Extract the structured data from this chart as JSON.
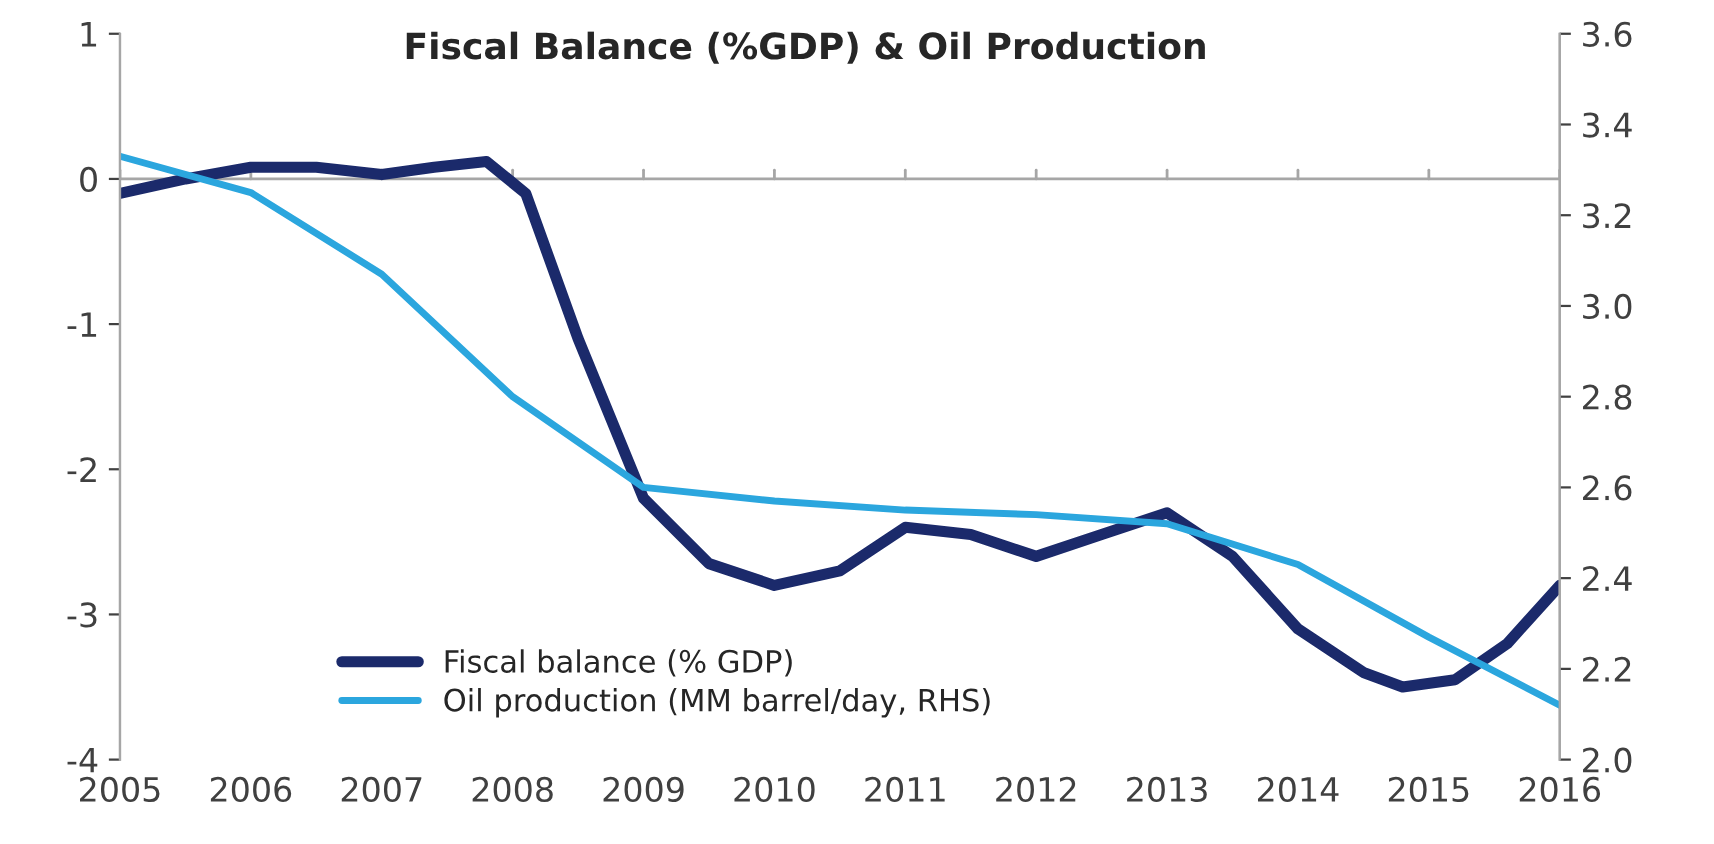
{
  "chart_data": {
    "type": "line",
    "title": "Fiscal Balance (%GDP) & Oil Production",
    "xlim": [
      2005,
      2016
    ],
    "xticks": [
      2005,
      2006,
      2007,
      2008,
      2009,
      2010,
      2011,
      2012,
      2013,
      2014,
      2015,
      2016
    ],
    "ylim": [
      -4,
      1
    ],
    "yticks": [
      -4,
      -3,
      -2,
      -1,
      0,
      1
    ],
    "y2lim": [
      2.0,
      3.6
    ],
    "y2ticks": [
      {
        "value": 2.0,
        "label": "2.0"
      },
      {
        "value": 2.2,
        "label": "2.2"
      },
      {
        "value": 2.4,
        "label": "2.4"
      },
      {
        "value": 2.6,
        "label": "2.6"
      },
      {
        "value": 2.8,
        "label": "2.8"
      },
      {
        "value": 3.0,
        "label": "3.0"
      },
      {
        "value": 3.2,
        "label": "3.2"
      },
      {
        "value": 3.4,
        "label": "3.4"
      },
      {
        "value": 3.6,
        "label": "3.6"
      }
    ],
    "ref_lines": [
      {
        "axis": "y",
        "value": 0,
        "color": "#a6a6a6"
      }
    ],
    "grid": false,
    "legend": "bottom",
    "marker": "none",
    "line_style": "solid",
    "series": [
      {
        "name": "Fiscal balance (% GDP)",
        "color": "#1b2a6b",
        "x": [
          2005,
          2005.5,
          2006,
          2006.5,
          2007,
          2007.4,
          2007.8,
          2008.1,
          2008.5,
          2009,
          2009.5,
          2010,
          2010.5,
          2011,
          2011.5,
          2012,
          2012.5,
          2013,
          2013.5,
          2014,
          2014.5,
          2014.8,
          2015.2,
          2015.6,
          2016
        ],
        "values": [
          -0.1,
          0.0,
          0.08,
          0.08,
          0.03,
          0.08,
          0.12,
          -0.1,
          -1.1,
          -2.2,
          -2.65,
          -2.8,
          -2.7,
          -2.4,
          -2.45,
          -2.6,
          -2.45,
          -2.3,
          -2.6,
          -3.1,
          -3.4,
          -3.5,
          -3.45,
          -3.2,
          -2.8
        ]
      },
      {
        "name": "Oil production (MM barrel/day, RHS)",
        "color": "#2ba6de",
        "axis": "y2",
        "x": [
          2005,
          2006,
          2007,
          2008,
          2009,
          2010,
          2011,
          2012,
          2013,
          2014,
          2015,
          2016
        ],
        "values": [
          3.33,
          3.25,
          3.07,
          2.8,
          2.6,
          2.57,
          2.55,
          2.54,
          2.52,
          2.43,
          2.27,
          2.12
        ]
      }
    ]
  }
}
